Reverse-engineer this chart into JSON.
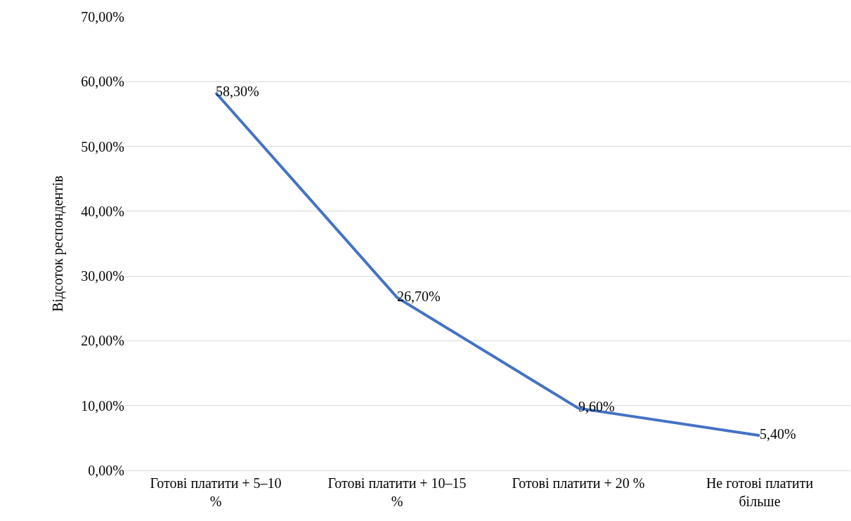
{
  "chart_data": {
    "type": "line",
    "ylabel": "Відсоток респондентів",
    "categories": [
      "Готові платити + 5–10 %",
      "Готові платити + 10–15 %",
      "Готові платити + 20 %",
      "Не готові платити більше"
    ],
    "series": [
      {
        "color": "#4472c4",
        "values": [
          58.3,
          26.7,
          9.6,
          5.4
        ],
        "value_labels": [
          "58,30%",
          "26,70%",
          "9,60%",
          "5,40%"
        ]
      }
    ],
    "ylim": [
      0,
      70
    ],
    "yticks": [
      {
        "value": 0,
        "label": "0,00%"
      },
      {
        "value": 10,
        "label": "10,00%"
      },
      {
        "value": 20,
        "label": "20,00%"
      },
      {
        "value": 30,
        "label": "30,00%"
      },
      {
        "value": 40,
        "label": "40,00%"
      },
      {
        "value": 50,
        "label": "50,00%"
      },
      {
        "value": 60,
        "label": "60,00%"
      },
      {
        "value": 70,
        "label": "70,00%"
      }
    ],
    "grid": "y",
    "marker": "none",
    "line_style": "solid"
  }
}
